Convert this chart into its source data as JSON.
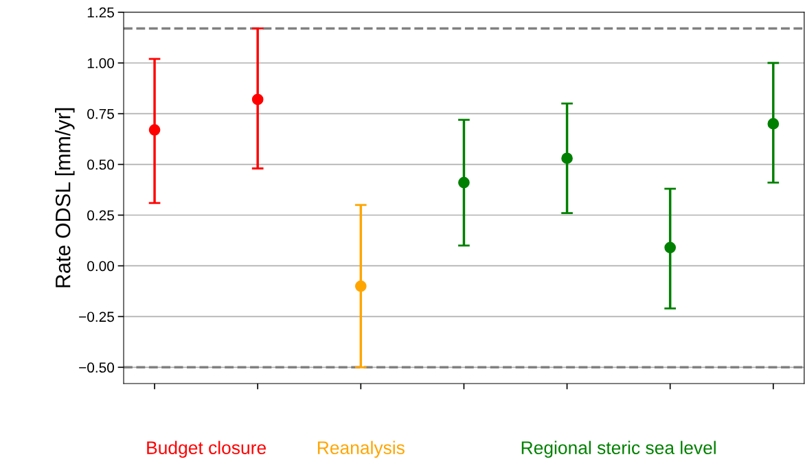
{
  "chart_data": {
    "type": "scatter",
    "ylabel": "Rate ODSL [mm/yr]",
    "categories": [
      null,
      null,
      null,
      null,
      null,
      null,
      null
    ],
    "series": [
      {
        "name": "Budget closure",
        "color": "#ff0000",
        "values": [
          0.67,
          0.82,
          null,
          null,
          null,
          null,
          null
        ],
        "errors": [
          [
            0.31,
            1.02
          ],
          [
            0.48,
            1.17
          ],
          null,
          null,
          null,
          null,
          null
        ]
      },
      {
        "name": "Reanalysis",
        "color": "#ffa500",
        "values": [
          null,
          null,
          -0.1,
          null,
          null,
          null,
          null
        ],
        "errors": [
          null,
          null,
          [
            -0.5,
            0.3
          ],
          null,
          null,
          null,
          null
        ]
      },
      {
        "name": "Regional steric sea level",
        "color": "#008000",
        "values": [
          null,
          null,
          null,
          0.41,
          0.53,
          0.09,
          0.7
        ],
        "errors": [
          null,
          null,
          null,
          [
            0.1,
            0.72
          ],
          [
            0.26,
            0.8
          ],
          [
            -0.21,
            0.38
          ],
          [
            0.41,
            1.0
          ]
        ]
      }
    ],
    "ylim": [
      -0.58,
      1.25
    ],
    "yticks": [
      {
        "value": -0.5,
        "label": "−0.50"
      },
      {
        "value": -0.25,
        "label": "−0.25"
      },
      {
        "value": 0,
        "label": "0.00"
      },
      {
        "value": 0.25,
        "label": "0.25"
      },
      {
        "value": 0.5,
        "label": "0.50"
      },
      {
        "value": 0.75,
        "label": "0.75"
      },
      {
        "value": 1.0,
        "label": "1.00"
      },
      {
        "value": 1.25,
        "label": "1.25"
      }
    ],
    "ref_lines": [
      {
        "axis": "y",
        "value": 1.17,
        "color": "#808080",
        "line_style": "dashed"
      },
      {
        "axis": "y",
        "value": -0.5,
        "color": "#808080",
        "line_style": "dashed"
      }
    ],
    "grid": "y",
    "marker": "circle",
    "legend": false,
    "tick_labels": "y"
  }
}
